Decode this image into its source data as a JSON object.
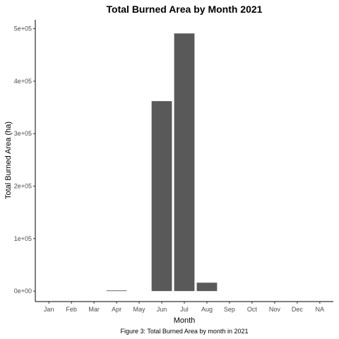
{
  "chart_data": {
    "type": "bar",
    "title": "Total Burned Area by Month 2021",
    "xlabel": "Month",
    "ylabel": "Total Burned Area (ha)",
    "caption": "Figure 3: Total Burned Area by month in 2021",
    "categories": [
      "Jan",
      "Feb",
      "Mar",
      "Apr",
      "May",
      "Jun",
      "Jul",
      "Aug",
      "Sep",
      "Oct",
      "Nov",
      "Dec",
      "NA"
    ],
    "values": [
      0,
      0,
      0,
      1200,
      0,
      362000,
      491000,
      16000,
      0,
      0,
      0,
      0,
      0
    ],
    "ylim": [
      -20000,
      517000
    ],
    "yticks": [
      0,
      100000,
      200000,
      300000,
      400000,
      500000
    ],
    "ytick_labels": [
      "0e+00",
      "1e+05",
      "2e+05",
      "3e+05",
      "4e+05",
      "5e+05"
    ],
    "grid": false,
    "bar_color": "#595959"
  }
}
